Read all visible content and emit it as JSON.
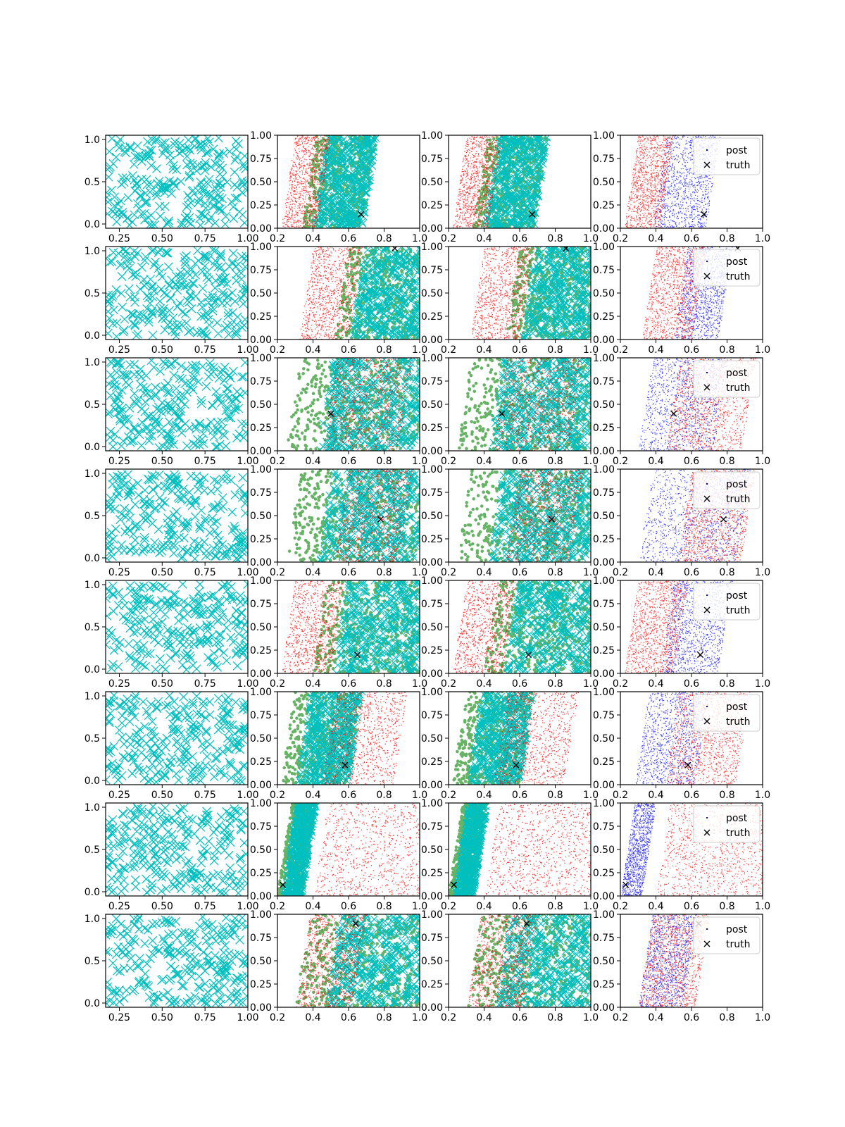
{
  "figure": {
    "background": "#ffffff"
  },
  "colors": {
    "cyan": "#00bfbf",
    "red": "#ff0000",
    "green": "#008000",
    "blue": "#0000ff",
    "black": "#000000"
  },
  "chart_data": {
    "type": "scatter",
    "layout": {
      "rows": 8,
      "cols": 4
    },
    "columns": [
      {
        "kind": "samples",
        "xlim": [
          0.17,
          1.0
        ],
        "ylim": [
          -0.05,
          1.05
        ],
        "xticks": [
          0.25,
          0.5,
          0.75,
          1.0
        ],
        "xtick_labels": [
          "0.25",
          "0.50",
          "0.75",
          "1.00"
        ],
        "yticks": [
          0.0,
          0.5,
          1.0
        ],
        "ytick_labels": [
          "0.0",
          "0.5",
          "1.0"
        ],
        "series": [
          {
            "marker": "x",
            "color": "#00bfbf"
          }
        ]
      },
      {
        "kind": "overlay",
        "xlim": [
          0.2,
          1.0
        ],
        "ylim": [
          0.0,
          1.0
        ],
        "xticks": [
          0.2,
          0.4,
          0.6,
          0.8,
          1.0
        ],
        "xtick_labels": [
          "0.2",
          "0.4",
          "0.6",
          "0.8",
          "1.0"
        ],
        "yticks": [
          0.0,
          0.25,
          0.5,
          0.75,
          1.0
        ],
        "ytick_labels": [
          "0.00",
          "0.25",
          "0.50",
          "0.75",
          "1.00"
        ],
        "series": [
          {
            "marker": "dot",
            "color": "#ff0000"
          },
          {
            "marker": "circle",
            "color": "#008000"
          },
          {
            "marker": "x",
            "color": "#00bfbf"
          },
          {
            "marker": "x",
            "color": "#000000"
          }
        ]
      },
      {
        "kind": "overlay",
        "xlim": [
          0.2,
          1.0
        ],
        "ylim": [
          0.0,
          1.0
        ],
        "xticks": [
          0.2,
          0.4,
          0.6,
          0.8,
          1.0
        ],
        "xtick_labels": [
          "0.2",
          "0.4",
          "0.6",
          "0.8",
          "1.0"
        ],
        "yticks": [
          0.0,
          0.25,
          0.5,
          0.75,
          1.0
        ],
        "ytick_labels": [
          "0.00",
          "0.25",
          "0.50",
          "0.75",
          "1.00"
        ],
        "series": [
          {
            "marker": "dot",
            "color": "#ff0000"
          },
          {
            "marker": "circle",
            "color": "#008000"
          },
          {
            "marker": "x",
            "color": "#00bfbf"
          },
          {
            "marker": "x",
            "color": "#000000"
          }
        ]
      },
      {
        "kind": "posterior",
        "xlim": [
          0.2,
          1.0
        ],
        "ylim": [
          0.0,
          1.0
        ],
        "xticks": [
          0.2,
          0.4,
          0.6,
          0.8,
          1.0
        ],
        "xtick_labels": [
          "0.2",
          "0.4",
          "0.6",
          "0.8",
          "1.0"
        ],
        "yticks": [
          0.0,
          0.25,
          0.5,
          0.75,
          1.0
        ],
        "ytick_labels": [
          "0.00",
          "0.25",
          "0.50",
          "0.75",
          "1.00"
        ],
        "series": [
          {
            "name": "post",
            "marker": "dot",
            "color": "#0000ff"
          },
          {
            "marker": "dot",
            "color": "#ff0000"
          },
          {
            "name": "truth",
            "marker": "x",
            "color": "#000000"
          }
        ],
        "legend": {
          "loc": "upper right",
          "entries": [
            "post",
            "truth"
          ]
        }
      }
    ],
    "rows": [
      {
        "truth": [
          0.67,
          0.15
        ],
        "red_band": [
          0.22,
          0.42
        ],
        "other_band": [
          0.34,
          0.68
        ],
        "blue_band": [
          0.38,
          0.68
        ],
        "red_is_right": false
      },
      {
        "truth": [
          0.86,
          0.98
        ],
        "red_band": [
          0.32,
          0.6
        ],
        "other_band": [
          0.52,
          1.0
        ],
        "blue_band": [
          0.5,
          0.75
        ],
        "red_is_right": false
      },
      {
        "truth": [
          0.5,
          0.4
        ],
        "red_band": [
          0.45,
          0.88
        ],
        "other_band": [
          0.25,
          0.98
        ],
        "blue_band": [
          0.3,
          0.72
        ],
        "red_is_right": true
      },
      {
        "truth": [
          0.78,
          0.46
        ],
        "red_band": [
          0.52,
          0.88
        ],
        "other_band": [
          0.25,
          0.98
        ],
        "blue_band": [
          0.3,
          0.85
        ],
        "red_is_right": true
      },
      {
        "truth": [
          0.65,
          0.2
        ],
        "red_band": [
          0.22,
          0.5
        ],
        "other_band": [
          0.4,
          1.0
        ],
        "blue_band": [
          0.42,
          0.75
        ],
        "red_is_right": false
      },
      {
        "truth": [
          0.58,
          0.21
        ],
        "red_band": [
          0.45,
          0.85
        ],
        "other_band": [
          0.22,
          0.6
        ],
        "blue_band": [
          0.28,
          0.62
        ],
        "red_is_right": true
      },
      {
        "truth": [
          0.23,
          0.12
        ],
        "red_band": [
          0.4,
          1.0
        ],
        "other_band": [
          0.2,
          0.34
        ],
        "blue_band": [
          0.2,
          0.32
        ],
        "red_is_right": true
      },
      {
        "truth": [
          0.64,
          0.9
        ],
        "red_band": [
          0.3,
          0.62
        ],
        "other_band": [
          0.3,
          1.0
        ],
        "blue_band": [
          0.3,
          0.55
        ],
        "red_is_right": true
      }
    ]
  }
}
